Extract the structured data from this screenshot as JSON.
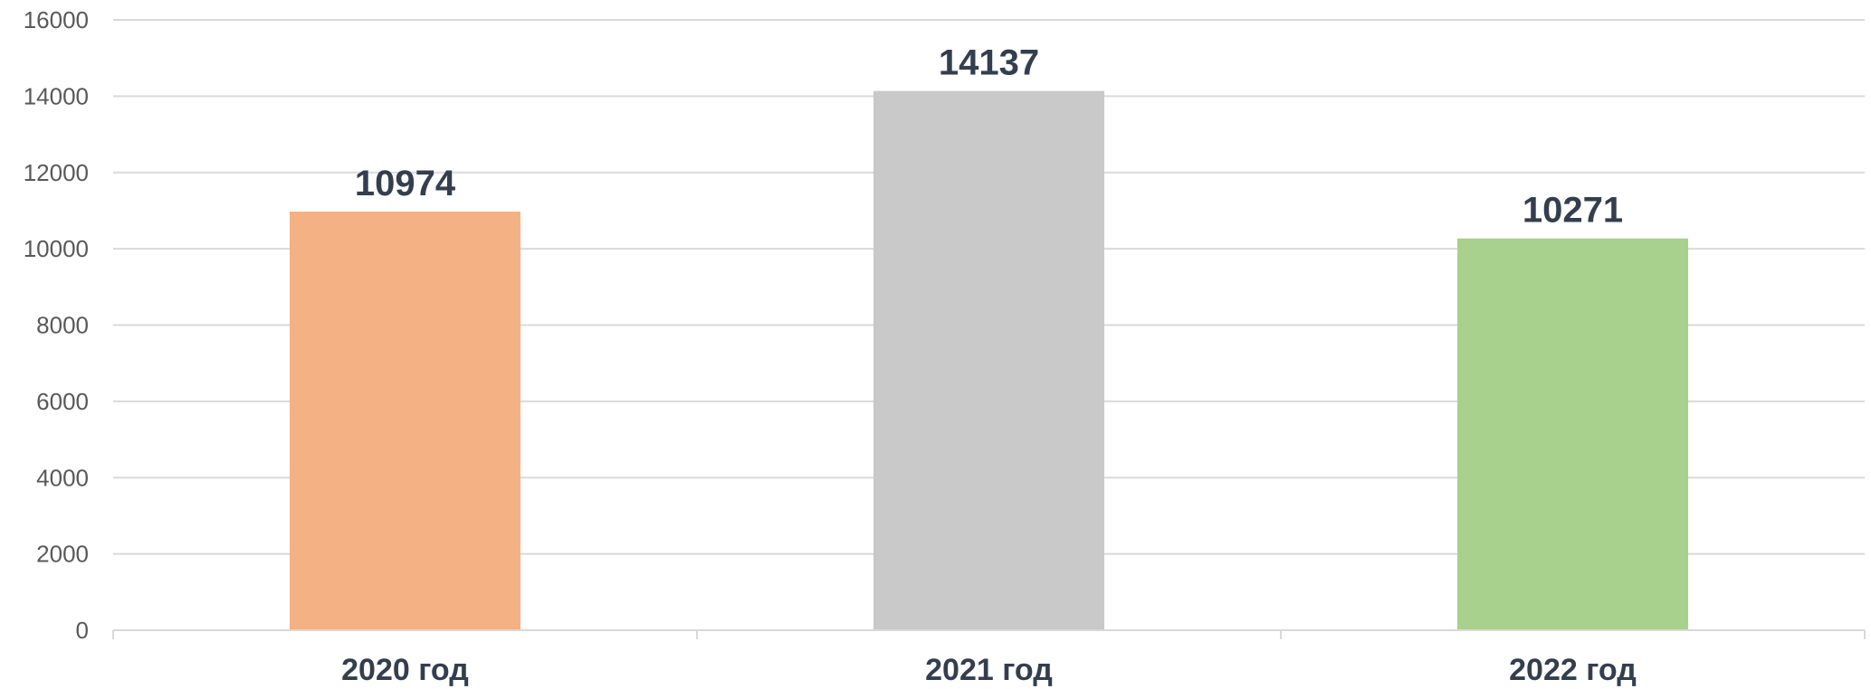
{
  "chart_data": {
    "type": "bar",
    "categories": [
      "2020 год",
      "2021 год",
      "2022 год"
    ],
    "values": [
      10974,
      14137,
      10271
    ],
    "data_labels": [
      "10974",
      "14137",
      "10271"
    ],
    "colors": [
      "#f4b183",
      "#c9c9c9",
      "#a9d18e"
    ],
    "title": "",
    "xlabel": "",
    "ylabel": "",
    "ylim": [
      0,
      16000
    ],
    "yticks": [
      0,
      2000,
      4000,
      6000,
      8000,
      10000,
      12000,
      14000,
      16000
    ],
    "ytick_labels": [
      "0",
      "2000",
      "4000",
      "6000",
      "8000",
      "10000",
      "12000",
      "14000",
      "16000"
    ],
    "grid": true,
    "legend": "none",
    "gridline_color": "#d9d9d9",
    "label_color": "#333f4f",
    "tick_color": "#595959"
  }
}
